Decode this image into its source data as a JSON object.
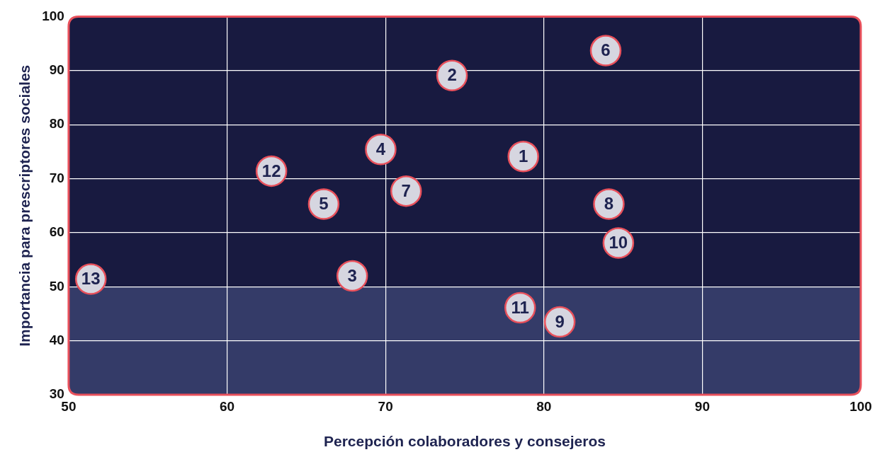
{
  "chart_data": {
    "type": "scatter",
    "xlabel": "Percepción colaboradores y consejeros",
    "ylabel": "Importancia para prescriptores sociales",
    "series": [
      {
        "color": "#d6d6e0",
        "x": [
          78.7,
          74.2,
          67.9,
          69.7,
          66.1,
          83.9,
          71.3,
          84.1,
          81.0,
          84.7,
          78.5,
          62.8,
          51.4
        ],
        "values": [
          74.1,
          89.1,
          52.0,
          75.4,
          65.3,
          93.7,
          67.7,
          65.3,
          43.5,
          58.1,
          46.1,
          71.4,
          51.4
        ]
      }
    ],
    "annotations": [
      {
        "text": "1",
        "x": 78.7,
        "y": 74.1
      },
      {
        "text": "2",
        "x": 74.2,
        "y": 89.1
      },
      {
        "text": "3",
        "x": 67.9,
        "y": 52.0
      },
      {
        "text": "4",
        "x": 69.7,
        "y": 75.4
      },
      {
        "text": "5",
        "x": 66.1,
        "y": 65.3
      },
      {
        "text": "6",
        "x": 83.9,
        "y": 93.7
      },
      {
        "text": "7",
        "x": 71.3,
        "y": 67.7
      },
      {
        "text": "8",
        "x": 84.1,
        "y": 65.3
      },
      {
        "text": "9",
        "x": 81.0,
        "y": 43.5
      },
      {
        "text": "10",
        "x": 84.7,
        "y": 58.1
      },
      {
        "text": "11",
        "x": 78.5,
        "y": 46.1
      },
      {
        "text": "12",
        "x": 62.8,
        "y": 71.4
      },
      {
        "text": "13",
        "x": 51.4,
        "y": 51.4
      }
    ],
    "bands": [
      {
        "axis": "y",
        "from": 30,
        "to": 50,
        "color": "#343b68"
      },
      {
        "axis": "y",
        "from": 50,
        "to": 100,
        "color": "#181a40"
      }
    ],
    "xlim": [
      50,
      100
    ],
    "xticks": [
      50,
      60,
      70,
      80,
      90,
      100
    ],
    "ylim": [
      30,
      100
    ],
    "yticks": [
      30,
      40,
      50,
      60,
      70,
      80,
      90,
      100
    ],
    "grid": true,
    "marker": "circle",
    "legend": false
  }
}
